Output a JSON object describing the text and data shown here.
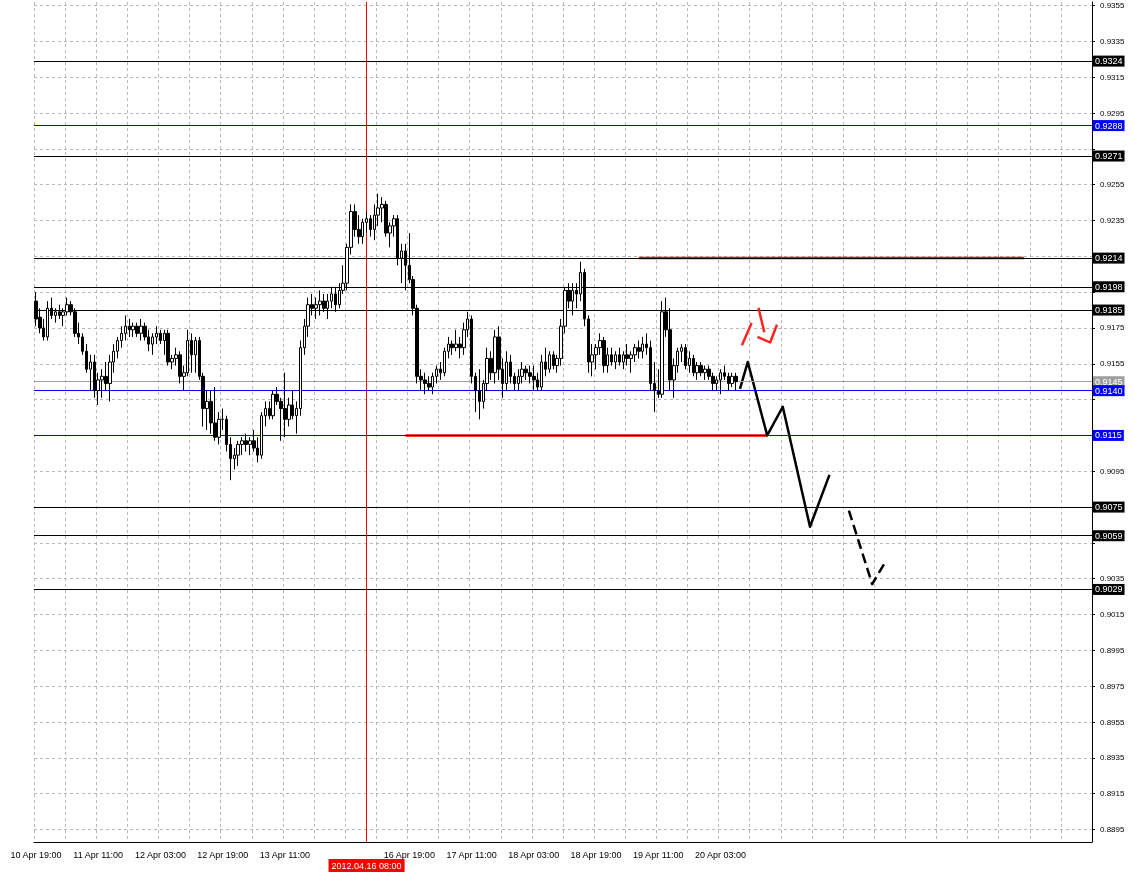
{
  "chart_data": {
    "type": "candlestick",
    "categories": [
      "10 Apr 19:00",
      null,
      null,
      null,
      null,
      null,
      null,
      null,
      null,
      null,
      null,
      null,
      null,
      null,
      null,
      null,
      "11 Apr 11:00",
      null,
      null,
      null,
      null,
      null,
      null,
      null,
      null,
      null,
      null,
      null,
      null,
      null,
      null,
      null,
      "12 Apr 03:00",
      null,
      null,
      null,
      null,
      null,
      null,
      null,
      null,
      null,
      null,
      null,
      null,
      null,
      null,
      null,
      "12 Apr 19:00",
      null,
      null,
      null,
      null,
      null,
      null,
      null,
      null,
      null,
      null,
      null,
      null,
      null,
      null,
      null,
      "13 Apr 11:00",
      null,
      null,
      null,
      null,
      null,
      null,
      null,
      null,
      null,
      null,
      null,
      null,
      null,
      null,
      null,
      null,
      null,
      null,
      null,
      null,
      "2012.04.16 08:00",
      null,
      null,
      null,
      null,
      null,
      null,
      null,
      null,
      null,
      null,
      "16 Apr 19:00",
      null,
      null,
      null,
      null,
      null,
      null,
      null,
      null,
      null,
      null,
      null,
      null,
      null,
      null,
      null,
      "17 Apr 11:00",
      null,
      null,
      null,
      null,
      null,
      null,
      null,
      null,
      null,
      null,
      null,
      null,
      null,
      null,
      null,
      "18 Apr 03:00",
      null,
      null,
      null,
      null,
      null,
      null,
      null,
      null,
      null,
      null,
      null,
      null,
      null,
      null,
      null,
      "18 Apr 19:00",
      null,
      null,
      null,
      null,
      null,
      null,
      null,
      null,
      null,
      null,
      null,
      null,
      null,
      null,
      null,
      "19 Apr 11:00",
      null,
      null,
      null,
      null,
      null,
      null,
      null,
      null,
      null,
      null,
      null,
      null,
      null,
      null,
      null,
      "20 Apr 03:00",
      null,
      null,
      null,
      null,
      null,
      null,
      null,
      null,
      null,
      null,
      null,
      null,
      null,
      null,
      null,
      null,
      null,
      null,
      null,
      null,
      null,
      null,
      null,
      null,
      null,
      null,
      null,
      null,
      null,
      null,
      null,
      null,
      null,
      null,
      null,
      null,
      null,
      null,
      null,
      null,
      null,
      null,
      null,
      null,
      null,
      null,
      null,
      null,
      null,
      null,
      null,
      null,
      null,
      null,
      null,
      null,
      null,
      null,
      null,
      null,
      null,
      null,
      null,
      null,
      null,
      null,
      null,
      null,
      null,
      null,
      null,
      null,
      null,
      null,
      null,
      null,
      null,
      null,
      null,
      null,
      null,
      null,
      null,
      null,
      null,
      null,
      null,
      null,
      null,
      null,
      null,
      null,
      null,
      null,
      null
    ],
    "ohlc": [
      [
        0.919,
        0.9195,
        0.9176,
        0.918
      ],
      [
        0.9181,
        0.9186,
        0.9172,
        0.9175
      ],
      [
        0.9175,
        0.918,
        0.9168,
        0.917
      ],
      [
        0.917,
        0.919,
        0.9168,
        0.9186
      ],
      [
        0.9186,
        0.9192,
        0.918,
        0.9182
      ],
      [
        0.9182,
        0.9186,
        0.9178,
        0.9184
      ],
      [
        0.9184,
        0.9188,
        0.918,
        0.9182
      ],
      [
        0.9182,
        0.9186,
        0.9176,
        0.9184
      ],
      [
        0.9184,
        0.9192,
        0.9182,
        0.9188
      ],
      [
        0.9188,
        0.919,
        0.9182,
        0.9184
      ],
      [
        0.9184,
        0.9186,
        0.917,
        0.9172
      ],
      [
        0.9172,
        0.9178,
        0.9166,
        0.917
      ],
      [
        0.917,
        0.9172,
        0.916,
        0.9162
      ],
      [
        0.9162,
        0.9166,
        0.915,
        0.9152
      ],
      [
        0.9152,
        0.916,
        0.914,
        0.9156
      ],
      [
        0.9156,
        0.916,
        0.9136,
        0.914
      ],
      [
        0.914,
        0.915,
        0.9132,
        0.9146
      ],
      [
        0.9146,
        0.9152,
        0.9136,
        0.9148
      ],
      [
        0.9148,
        0.9156,
        0.914,
        0.9144
      ],
      [
        0.9144,
        0.916,
        0.9134,
        0.9156
      ],
      [
        0.9156,
        0.9166,
        0.915,
        0.9162
      ],
      [
        0.9162,
        0.917,
        0.9158,
        0.9168
      ],
      [
        0.9168,
        0.9176,
        0.9164,
        0.9172
      ],
      [
        0.9172,
        0.9182,
        0.9168,
        0.9176
      ],
      [
        0.9176,
        0.918,
        0.917,
        0.9174
      ],
      [
        0.9174,
        0.9178,
        0.917,
        0.9176
      ],
      [
        0.9176,
        0.9178,
        0.917,
        0.9172
      ],
      [
        0.9172,
        0.918,
        0.9168,
        0.9176
      ],
      [
        0.9176,
        0.9178,
        0.9168,
        0.917
      ],
      [
        0.917,
        0.9174,
        0.9162,
        0.9166
      ],
      [
        0.9166,
        0.9172,
        0.916,
        0.917
      ],
      [
        0.917,
        0.9176,
        0.9166,
        0.9172
      ],
      [
        0.9172,
        0.9174,
        0.9166,
        0.9168
      ],
      [
        0.9168,
        0.9174,
        0.916,
        0.9172
      ],
      [
        0.9172,
        0.9174,
        0.9154,
        0.9156
      ],
      [
        0.9156,
        0.916,
        0.9152,
        0.9158
      ],
      [
        0.9158,
        0.9164,
        0.9154,
        0.916
      ],
      [
        0.916,
        0.9162,
        0.9144,
        0.9148
      ],
      [
        0.9148,
        0.9154,
        0.914,
        0.915
      ],
      [
        0.915,
        0.9174,
        0.9148,
        0.9168
      ],
      [
        0.9168,
        0.9172,
        0.915,
        0.916
      ],
      [
        0.916,
        0.917,
        0.915,
        0.9168
      ],
      [
        0.9168,
        0.917,
        0.9146,
        0.9148
      ],
      [
        0.9148,
        0.915,
        0.912,
        0.913
      ],
      [
        0.913,
        0.914,
        0.9118,
        0.9134
      ],
      [
        0.9134,
        0.914,
        0.9116,
        0.9122
      ],
      [
        0.9122,
        0.9142,
        0.9112,
        0.9114
      ],
      [
        0.9114,
        0.9128,
        0.911,
        0.9124
      ],
      [
        0.9124,
        0.913,
        0.9118,
        0.9124
      ],
      [
        0.9124,
        0.9126,
        0.9106,
        0.911
      ],
      [
        0.911,
        0.9114,
        0.909,
        0.9102
      ],
      [
        0.9102,
        0.9108,
        0.9096,
        0.9104
      ],
      [
        0.9104,
        0.9112,
        0.9098,
        0.911
      ],
      [
        0.911,
        0.9114,
        0.9104,
        0.9112
      ],
      [
        0.9112,
        0.9116,
        0.9106,
        0.911
      ],
      [
        0.911,
        0.9114,
        0.9104,
        0.9112
      ],
      [
        0.9112,
        0.9118,
        0.9106,
        0.9108
      ],
      [
        0.9108,
        0.9114,
        0.91,
        0.9104
      ],
      [
        0.9104,
        0.9128,
        0.9102,
        0.9126
      ],
      [
        0.9126,
        0.9134,
        0.912,
        0.913
      ],
      [
        0.913,
        0.9134,
        0.9124,
        0.9126
      ],
      [
        0.9126,
        0.914,
        0.9124,
        0.9138
      ],
      [
        0.9138,
        0.9142,
        0.9132,
        0.9134
      ],
      [
        0.9134,
        0.9136,
        0.9112,
        0.913
      ],
      [
        0.913,
        0.915,
        0.9114,
        0.9124
      ],
      [
        0.9124,
        0.9136,
        0.912,
        0.9132
      ],
      [
        0.9132,
        0.914,
        0.9124,
        0.9126
      ],
      [
        0.9126,
        0.9134,
        0.9116,
        0.913
      ],
      [
        0.913,
        0.9168,
        0.9126,
        0.9164
      ],
      [
        0.9164,
        0.918,
        0.916,
        0.9176
      ],
      [
        0.9176,
        0.9192,
        0.917,
        0.9188
      ],
      [
        0.9188,
        0.9194,
        0.9182,
        0.9186
      ],
      [
        0.9186,
        0.9192,
        0.918,
        0.9188
      ],
      [
        0.9188,
        0.9196,
        0.9182,
        0.919
      ],
      [
        0.919,
        0.9194,
        0.9184,
        0.9186
      ],
      [
        0.9186,
        0.9194,
        0.918,
        0.919
      ],
      [
        0.919,
        0.9198,
        0.9186,
        0.9194
      ],
      [
        0.9194,
        0.9198,
        0.9184,
        0.9188
      ],
      [
        0.9188,
        0.92,
        0.9186,
        0.9196
      ],
      [
        0.9196,
        0.921,
        0.9194,
        0.92
      ],
      [
        0.92,
        0.9222,
        0.9196,
        0.922
      ],
      [
        0.922,
        0.9244,
        0.9216,
        0.924
      ],
      [
        0.924,
        0.9244,
        0.9226,
        0.923
      ],
      [
        0.923,
        0.9238,
        0.9222,
        0.9226
      ],
      [
        0.9226,
        0.9236,
        0.9222,
        0.9234
      ],
      [
        0.9234,
        0.924,
        0.9228,
        0.9236
      ],
      [
        0.9236,
        0.9238,
        0.9226,
        0.923
      ],
      [
        0.923,
        0.9244,
        0.9224,
        0.9238
      ],
      [
        0.9238,
        0.925,
        0.9232,
        0.9242
      ],
      [
        0.9242,
        0.9248,
        0.9234,
        0.9244
      ],
      [
        0.9244,
        0.9246,
        0.9226,
        0.9228
      ],
      [
        0.9228,
        0.9234,
        0.922,
        0.9232
      ],
      [
        0.9232,
        0.9238,
        0.9226,
        0.9236
      ],
      [
        0.9236,
        0.9238,
        0.921,
        0.9214
      ],
      [
        0.9214,
        0.9222,
        0.92,
        0.9218
      ],
      [
        0.9218,
        0.9222,
        0.9196,
        0.921
      ],
      [
        0.921,
        0.9228,
        0.92,
        0.9202
      ],
      [
        0.9202,
        0.9204,
        0.9182,
        0.9186
      ],
      [
        0.9186,
        0.9188,
        0.9144,
        0.9148
      ],
      [
        0.9148,
        0.9152,
        0.914,
        0.9146
      ],
      [
        0.9146,
        0.915,
        0.9138,
        0.9144
      ],
      [
        0.9144,
        0.9148,
        0.914,
        0.9142
      ],
      [
        0.9142,
        0.915,
        0.9138,
        0.9148
      ],
      [
        0.9148,
        0.9154,
        0.9144,
        0.9152
      ],
      [
        0.9152,
        0.9156,
        0.9146,
        0.915
      ],
      [
        0.915,
        0.9164,
        0.9148,
        0.9162
      ],
      [
        0.9162,
        0.917,
        0.9158,
        0.9166
      ],
      [
        0.9166,
        0.9168,
        0.916,
        0.9164
      ],
      [
        0.9164,
        0.9174,
        0.9162,
        0.9166
      ],
      [
        0.9166,
        0.917,
        0.9158,
        0.9164
      ],
      [
        0.9164,
        0.9178,
        0.916,
        0.9174
      ],
      [
        0.9174,
        0.9184,
        0.917,
        0.918
      ],
      [
        0.918,
        0.9182,
        0.9144,
        0.9148
      ],
      [
        0.9148,
        0.915,
        0.9128,
        0.914
      ],
      [
        0.914,
        0.9152,
        0.9124,
        0.9134
      ],
      [
        0.9134,
        0.9146,
        0.913,
        0.9144
      ],
      [
        0.9144,
        0.9164,
        0.914,
        0.9158
      ],
      [
        0.9158,
        0.9162,
        0.9146,
        0.915
      ],
      [
        0.915,
        0.9174,
        0.9144,
        0.917
      ],
      [
        0.917,
        0.9176,
        0.9146,
        0.9152
      ],
      [
        0.9152,
        0.9158,
        0.9136,
        0.9144
      ],
      [
        0.9144,
        0.9162,
        0.914,
        0.9156
      ],
      [
        0.9156,
        0.916,
        0.9144,
        0.9148
      ],
      [
        0.9148,
        0.915,
        0.914,
        0.9144
      ],
      [
        0.9144,
        0.9152,
        0.914,
        0.9148
      ],
      [
        0.9148,
        0.9156,
        0.9144,
        0.9152
      ],
      [
        0.9152,
        0.9154,
        0.9146,
        0.915
      ],
      [
        0.915,
        0.9154,
        0.9144,
        0.9148
      ],
      [
        0.9148,
        0.9154,
        0.914,
        0.9146
      ],
      [
        0.9146,
        0.915,
        0.914,
        0.9142
      ],
      [
        0.9142,
        0.916,
        0.914,
        0.9156
      ],
      [
        0.9156,
        0.9164,
        0.9148,
        0.9152
      ],
      [
        0.9152,
        0.9162,
        0.915,
        0.916
      ],
      [
        0.916,
        0.9162,
        0.9152,
        0.9154
      ],
      [
        0.9154,
        0.916,
        0.915,
        0.9158
      ],
      [
        0.9158,
        0.918,
        0.9154,
        0.9176
      ],
      [
        0.9176,
        0.9198,
        0.9172,
        0.9196
      ],
      [
        0.9196,
        0.92,
        0.9186,
        0.919
      ],
      [
        0.919,
        0.92,
        0.9182,
        0.9196
      ],
      [
        0.9196,
        0.92,
        0.9186,
        0.9194
      ],
      [
        0.9194,
        0.9212,
        0.919,
        0.9206
      ],
      [
        0.9206,
        0.9208,
        0.9176,
        0.918
      ],
      [
        0.918,
        0.9182,
        0.915,
        0.9156
      ],
      [
        0.9156,
        0.9166,
        0.9148,
        0.916
      ],
      [
        0.916,
        0.9166,
        0.9152,
        0.9164
      ],
      [
        0.9164,
        0.9172,
        0.916,
        0.9168
      ],
      [
        0.9168,
        0.917,
        0.915,
        0.9154
      ],
      [
        0.9154,
        0.9164,
        0.915,
        0.916
      ],
      [
        0.916,
        0.9164,
        0.9154,
        0.9156
      ],
      [
        0.9156,
        0.9162,
        0.9152,
        0.916
      ],
      [
        0.916,
        0.9164,
        0.9154,
        0.9156
      ],
      [
        0.9156,
        0.9162,
        0.9152,
        0.916
      ],
      [
        0.916,
        0.9166,
        0.9154,
        0.9158
      ],
      [
        0.9158,
        0.9162,
        0.915,
        0.916
      ],
      [
        0.916,
        0.9166,
        0.9156,
        0.9164
      ],
      [
        0.9164,
        0.9168,
        0.9158,
        0.9162
      ],
      [
        0.9162,
        0.917,
        0.9158,
        0.9166
      ],
      [
        0.9166,
        0.9172,
        0.916,
        0.9164
      ],
      [
        0.9164,
        0.9168,
        0.914,
        0.9144
      ],
      [
        0.9144,
        0.9156,
        0.9128,
        0.914
      ],
      [
        0.914,
        0.9152,
        0.9136,
        0.9138
      ],
      [
        0.9138,
        0.919,
        0.9136,
        0.9184
      ],
      [
        0.9184,
        0.9192,
        0.917,
        0.9174
      ],
      [
        0.9174,
        0.9186,
        0.914,
        0.9146
      ],
      [
        0.9146,
        0.9158,
        0.9136,
        0.9154
      ],
      [
        0.9154,
        0.9164,
        0.915,
        0.9162
      ],
      [
        0.9162,
        0.9166,
        0.9156,
        0.9164
      ],
      [
        0.9164,
        0.9166,
        0.9152,
        0.9154
      ],
      [
        0.9154,
        0.9162,
        0.915,
        0.9158
      ],
      [
        0.9158,
        0.916,
        0.9148,
        0.915
      ],
      [
        0.915,
        0.9156,
        0.9146,
        0.9154
      ],
      [
        0.9154,
        0.9156,
        0.9148,
        0.915
      ],
      [
        0.915,
        0.9154,
        0.9146,
        0.9152
      ],
      [
        0.9152,
        0.9154,
        0.9146,
        0.9148
      ],
      [
        0.9148,
        0.915,
        0.914,
        0.9144
      ],
      [
        0.9144,
        0.9148,
        0.914,
        0.9146
      ],
      [
        0.9146,
        0.9152,
        0.9138,
        0.915
      ],
      [
        0.915,
        0.9154,
        0.9146,
        0.9148
      ],
      [
        0.9148,
        0.915,
        0.914,
        0.9144
      ],
      [
        0.9144,
        0.915,
        0.9142,
        0.9148
      ],
      [
        0.9148,
        0.915,
        0.914,
        0.9145
      ],
      null,
      null,
      null,
      null,
      null,
      null,
      null,
      null,
      null,
      null,
      null,
      null,
      null,
      null,
      null,
      null,
      null,
      null,
      null,
      null,
      null,
      null,
      null,
      null,
      null,
      null,
      null,
      null,
      null,
      null,
      null,
      null,
      null,
      null,
      null,
      null,
      null,
      null,
      null,
      null,
      null,
      null,
      null,
      null,
      null,
      null,
      null,
      null,
      null,
      null,
      null,
      null,
      null,
      null,
      null,
      null,
      null,
      null,
      null,
      null,
      null,
      null,
      null,
      null,
      null,
      null,
      null,
      null,
      null,
      null,
      null,
      null,
      null,
      null,
      null,
      null,
      null,
      null,
      null,
      null,
      null,
      null,
      null,
      null,
      null,
      null,
      null,
      null,
      null,
      null,
      null
    ],
    "series": [
      {
        "type": "line",
        "color": "#ff0000",
        "values": [
          null,
          null,
          null,
          null,
          null,
          null,
          null,
          null,
          null,
          null,
          null,
          null,
          null,
          null,
          null,
          null,
          null,
          null,
          null,
          null,
          null,
          null,
          null,
          null,
          null,
          null,
          null,
          null,
          null,
          null,
          null,
          null,
          null,
          null,
          null,
          null,
          null,
          null,
          null,
          null,
          null,
          null,
          null,
          null,
          null,
          null,
          null,
          null,
          null,
          null,
          null,
          null,
          null,
          null,
          null,
          null,
          null,
          null,
          null,
          null,
          null,
          null,
          null,
          null,
          null,
          null,
          null,
          null,
          null,
          null,
          null,
          null,
          null,
          null,
          null,
          null,
          null,
          null,
          null,
          null,
          null,
          null,
          null,
          null,
          null,
          null,
          null,
          null,
          null,
          null,
          null,
          null,
          null,
          null,
          null,
          null,
          null,
          null,
          null,
          null,
          null,
          null,
          null,
          null,
          null,
          null,
          null,
          null,
          null,
          null,
          null,
          null,
          null,
          null,
          null,
          null,
          null,
          null,
          null,
          null,
          null,
          null,
          null,
          null,
          null,
          null,
          null,
          null,
          null,
          null,
          null,
          null,
          null,
          null,
          null,
          null,
          null,
          null,
          null,
          null,
          null,
          null,
          null,
          null,
          null,
          null,
          null,
          null,
          null,
          null,
          null,
          null,
          null,
          null,
          null,
          0.9214,
          null,
          null,
          null,
          null,
          null,
          null,
          null,
          null,
          null,
          null,
          null,
          null,
          null,
          null,
          null,
          null,
          null,
          null,
          null,
          null,
          null,
          null,
          null,
          null,
          null,
          null,
          null,
          null,
          null,
          null,
          null,
          null,
          null,
          null,
          null,
          null,
          null,
          null,
          null,
          null,
          null,
          null,
          null,
          null,
          null,
          null,
          null,
          null,
          null,
          null,
          null,
          null,
          null,
          null,
          null,
          null,
          null,
          null,
          null,
          null,
          null,
          null,
          null,
          null,
          null,
          null,
          null,
          null,
          null,
          null,
          null,
          null,
          null,
          null,
          null,
          null,
          null,
          null,
          null,
          null,
          null,
          null,
          null,
          null,
          null,
          null,
          null,
          null,
          null,
          null,
          null,
          null,
          null,
          null,
          null,
          null,
          null,
          null,
          0.9214,
          null,
          null,
          null,
          null,
          null,
          null,
          null,
          null,
          null,
          null,
          null,
          null,
          null,
          null,
          null,
          null,
          null
        ]
      },
      {
        "type": "line",
        "color": "#ff0000",
        "values": [
          null,
          null,
          null,
          null,
          null,
          null,
          null,
          null,
          null,
          null,
          null,
          null,
          null,
          null,
          null,
          null,
          null,
          null,
          null,
          null,
          null,
          null,
          null,
          null,
          null,
          null,
          null,
          null,
          null,
          null,
          null,
          null,
          null,
          null,
          null,
          null,
          null,
          null,
          null,
          null,
          null,
          null,
          null,
          null,
          null,
          null,
          null,
          null,
          null,
          null,
          null,
          null,
          null,
          null,
          null,
          null,
          null,
          null,
          null,
          null,
          null,
          null,
          null,
          null,
          null,
          null,
          null,
          null,
          null,
          null,
          null,
          null,
          null,
          null,
          null,
          null,
          null,
          null,
          null,
          null,
          null,
          null,
          null,
          null,
          null,
          null,
          null,
          null,
          null,
          null,
          null,
          null,
          null,
          null,
          null,
          0.9115,
          null,
          null,
          null,
          null,
          null,
          null,
          null,
          null,
          null,
          null,
          null,
          null,
          null,
          null,
          null,
          null,
          null,
          null,
          null,
          null,
          null,
          null,
          null,
          null,
          null,
          null,
          null,
          null,
          null,
          null,
          null,
          null,
          null,
          null,
          null,
          null,
          null,
          null,
          null,
          null,
          null,
          null,
          null,
          null,
          null,
          null,
          null,
          null,
          null,
          null,
          null,
          null,
          null,
          null,
          null,
          null,
          null,
          null,
          null,
          null,
          null,
          null,
          null,
          null,
          null,
          null,
          null,
          null,
          null,
          null,
          null,
          null,
          null,
          null,
          null,
          null,
          null,
          null,
          null,
          null,
          null,
          null,
          null,
          null,
          null,
          null,
          null,
          null,
          null,
          null,
          null,
          null,
          0.9115,
          null,
          null,
          null,
          null,
          null,
          null,
          null,
          null,
          null,
          null,
          null,
          null,
          null,
          null,
          null,
          null,
          null,
          null,
          null,
          null,
          null,
          null,
          null,
          null,
          null,
          null,
          null,
          null,
          null,
          null,
          null,
          null,
          null,
          null,
          null,
          null,
          null,
          null,
          null,
          null,
          null,
          null,
          null,
          null,
          null,
          null,
          null,
          null,
          null,
          null,
          null,
          null,
          null,
          null,
          null,
          null,
          null,
          null,
          null,
          null,
          null,
          null,
          null,
          null,
          null,
          null,
          null,
          null,
          null,
          null,
          null,
          null,
          null,
          null,
          null,
          null,
          null,
          null,
          null,
          null,
          null,
          null,
          null
        ]
      },
      {
        "type": "line",
        "color": "#000000",
        "line_style": "solid",
        "values": [
          null,
          null,
          null,
          null,
          null,
          null,
          null,
          null,
          null,
          null,
          null,
          null,
          null,
          null,
          null,
          null,
          null,
          null,
          null,
          null,
          null,
          null,
          null,
          null,
          null,
          null,
          null,
          null,
          null,
          null,
          null,
          null,
          null,
          null,
          null,
          null,
          null,
          null,
          null,
          null,
          null,
          null,
          null,
          null,
          null,
          null,
          null,
          null,
          null,
          null,
          null,
          null,
          null,
          null,
          null,
          null,
          null,
          null,
          null,
          null,
          null,
          null,
          null,
          null,
          null,
          null,
          null,
          null,
          null,
          null,
          null,
          null,
          null,
          null,
          null,
          null,
          null,
          null,
          null,
          null,
          null,
          null,
          null,
          null,
          null,
          null,
          null,
          null,
          null,
          null,
          null,
          null,
          null,
          null,
          null,
          null,
          null,
          null,
          null,
          null,
          null,
          null,
          null,
          null,
          null,
          null,
          null,
          null,
          null,
          null,
          null,
          null,
          null,
          null,
          null,
          null,
          null,
          null,
          null,
          null,
          null,
          null,
          null,
          null,
          null,
          null,
          null,
          null,
          null,
          null,
          null,
          null,
          null,
          null,
          null,
          null,
          null,
          null,
          null,
          null,
          null,
          null,
          null,
          null,
          null,
          null,
          null,
          null,
          null,
          null,
          null,
          null,
          null,
          null,
          null,
          null,
          null,
          null,
          null,
          null,
          null,
          null,
          null,
          null,
          null,
          null,
          null,
          null,
          null,
          null,
          null,
          null,
          null,
          null,
          null,
          null,
          null,
          null,
          null,
          null,
          null,
          0.9141,
          null,
          0.9156,
          null,
          null,
          null,
          null,
          0.9115,
          null,
          null,
          null,
          0.9131,
          null,
          null,
          null,
          null,
          null,
          null,
          0.9064,
          null,
          null,
          null,
          null,
          0.9093,
          null,
          null,
          null,
          null,
          null,
          null,
          null,
          null,
          null,
          null,
          null,
          null,
          null,
          null,
          null,
          null,
          null,
          null,
          null,
          null,
          null,
          null,
          null,
          null,
          null,
          null,
          null,
          null,
          null,
          null,
          null,
          null,
          null,
          null,
          null,
          null,
          null,
          null,
          null,
          null,
          null,
          null,
          null,
          null,
          null,
          null,
          null,
          null,
          null,
          null,
          null,
          null,
          null,
          null,
          null,
          null,
          null,
          null,
          null,
          null,
          null,
          null,
          null,
          null,
          null,
          null,
          null
        ]
      },
      {
        "type": "line",
        "color": "#000000",
        "line_style": "dashed",
        "values": [
          null,
          null,
          null,
          null,
          null,
          null,
          null,
          null,
          null,
          null,
          null,
          null,
          null,
          null,
          null,
          null,
          null,
          null,
          null,
          null,
          null,
          null,
          null,
          null,
          null,
          null,
          null,
          null,
          null,
          null,
          null,
          null,
          null,
          null,
          null,
          null,
          null,
          null,
          null,
          null,
          null,
          null,
          null,
          null,
          null,
          null,
          null,
          null,
          null,
          null,
          null,
          null,
          null,
          null,
          null,
          null,
          null,
          null,
          null,
          null,
          null,
          null,
          null,
          null,
          null,
          null,
          null,
          null,
          null,
          null,
          null,
          null,
          null,
          null,
          null,
          null,
          null,
          null,
          null,
          null,
          null,
          null,
          null,
          null,
          null,
          null,
          null,
          null,
          null,
          null,
          null,
          null,
          null,
          null,
          null,
          null,
          null,
          null,
          null,
          null,
          null,
          null,
          null,
          null,
          null,
          null,
          null,
          null,
          null,
          null,
          null,
          null,
          null,
          null,
          null,
          null,
          null,
          null,
          null,
          null,
          null,
          null,
          null,
          null,
          null,
          null,
          null,
          null,
          null,
          null,
          null,
          null,
          null,
          null,
          null,
          null,
          null,
          null,
          null,
          null,
          null,
          null,
          null,
          null,
          null,
          null,
          null,
          null,
          null,
          null,
          null,
          null,
          null,
          null,
          null,
          null,
          null,
          null,
          null,
          null,
          null,
          null,
          null,
          null,
          null,
          null,
          null,
          null,
          null,
          null,
          null,
          null,
          null,
          null,
          null,
          null,
          null,
          null,
          null,
          null,
          null,
          null,
          null,
          null,
          null,
          null,
          null,
          null,
          null,
          null,
          null,
          null,
          null,
          null,
          null,
          null,
          null,
          null,
          null,
          null,
          null,
          null,
          null,
          null,
          null,
          null,
          null,
          null,
          null,
          0.9073,
          null,
          null,
          null,
          null,
          null,
          0.9032,
          null,
          null,
          0.9043,
          null,
          null,
          null,
          null,
          null,
          null,
          null,
          null,
          null,
          null,
          null,
          null,
          null,
          null,
          null,
          null,
          null,
          null,
          null,
          null,
          null,
          null,
          null,
          null,
          null,
          null,
          null,
          null,
          null,
          null,
          null,
          null,
          null,
          null,
          null,
          null,
          null,
          null,
          null,
          null,
          null,
          null,
          null,
          null,
          null,
          null,
          null,
          null,
          null,
          null,
          null,
          null,
          null
        ]
      }
    ],
    "ylim": [
      0.8888,
      0.9357
    ],
    "yticks": [
      0.8895,
      0.8915,
      0.8935,
      0.8955,
      0.8975,
      0.8995,
      0.9015,
      0.9035,
      {
        "value": 0.9055,
        "label": null
      },
      {
        "value": 0.9075,
        "label": null
      },
      0.9095,
      {
        "value": 0.9115,
        "label": null
      },
      {
        "value": 0.9135,
        "label": null
      },
      0.9155,
      0.9175,
      {
        "value": 0.9195,
        "label": null
      },
      {
        "value": 0.9215,
        "label": null
      },
      0.9235,
      0.9255,
      {
        "value": 0.9275,
        "label": null
      },
      0.9295,
      0.9315,
      0.9335,
      0.9355
    ],
    "ref_lines": [
      {
        "axis": "y",
        "value": 0.9324,
        "label": "0.9324",
        "color": "#000000"
      },
      {
        "axis": "y",
        "value": 0.9288,
        "label": "0.9288",
        "color": "#0000ff"
      },
      {
        "axis": "y",
        "value": 0.9271,
        "label": "0.9271",
        "color": "#000000"
      },
      {
        "axis": "y",
        "value": 0.9214,
        "label": "0.9214",
        "color": "#000000"
      },
      {
        "axis": "y",
        "value": 0.9198,
        "label": "0.9198",
        "color": "#000000"
      },
      {
        "axis": "y",
        "value": 0.9185,
        "label": "0.9185",
        "color": "#000000"
      },
      {
        "axis": "y",
        "value": 0.9145,
        "label": "0.9145",
        "color": "#a0a0a0"
      },
      {
        "axis": "y",
        "value": 0.914,
        "label": "0.9140",
        "color": "#0000ff"
      },
      {
        "axis": "y",
        "value": 0.9115,
        "label": "0.9115",
        "color": "#0000ff"
      },
      {
        "axis": "y",
        "value": 0.9075,
        "label": "0.9075",
        "color": "#000000"
      },
      {
        "axis": "y",
        "value": 0.9059,
        "label": "0.9059",
        "color": "#000000"
      },
      {
        "axis": "y",
        "value": 0.9029,
        "label": "0.9029",
        "color": "#000000"
      },
      {
        "axis": "x",
        "value": "2012.04.16 08:00",
        "color": "#ff0000"
      }
    ],
    "grid": true
  }
}
